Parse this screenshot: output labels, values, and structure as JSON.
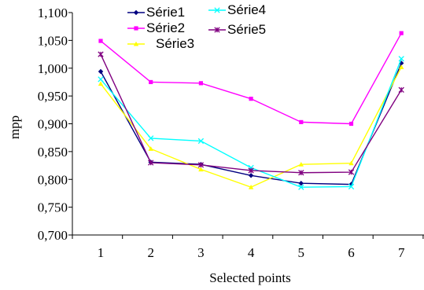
{
  "chart_data": {
    "type": "line",
    "title": "",
    "xlabel": "Selected points",
    "ylabel": "mpp",
    "categories": [
      "1",
      "2",
      "3",
      "4",
      "5",
      "6",
      "7"
    ],
    "ylim": [
      0.7,
      1.1
    ],
    "y_ticks": [
      "0,700",
      "0,750",
      "0,800",
      "0,850",
      "0,900",
      "0,950",
      "1,000",
      "1,050",
      "1,100"
    ],
    "y_tick_values": [
      0.7,
      0.75,
      0.8,
      0.85,
      0.9,
      0.95,
      1.0,
      1.05,
      1.1
    ],
    "grid": false,
    "legend_position": "top-center",
    "series": [
      {
        "name": "Série1",
        "color": "#000080",
        "marker": "diamond",
        "values": [
          0.994,
          0.831,
          0.827,
          0.807,
          0.793,
          0.791,
          1.009
        ]
      },
      {
        "name": "Série2",
        "color": "#ff00ff",
        "marker": "square",
        "values": [
          1.049,
          0.975,
          0.973,
          0.945,
          0.903,
          0.9,
          1.063
        ]
      },
      {
        "name": "Série3",
        "color": "#ffff00",
        "marker": "triangle",
        "values": [
          0.972,
          0.855,
          0.818,
          0.786,
          0.827,
          0.829,
          1.002
        ]
      },
      {
        "name": "Série4",
        "color": "#00ffff",
        "marker": "x",
        "values": [
          0.98,
          0.874,
          0.869,
          0.821,
          0.786,
          0.787,
          1.017
        ]
      },
      {
        "name": "Série5",
        "color": "#800080",
        "marker": "star",
        "values": [
          1.025,
          0.83,
          0.826,
          0.816,
          0.812,
          0.813,
          0.961
        ]
      }
    ]
  }
}
